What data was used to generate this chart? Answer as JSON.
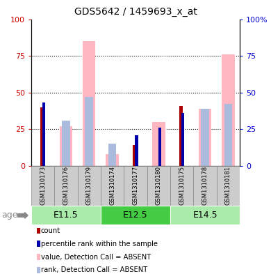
{
  "title": "GDS5642 / 1459693_x_at",
  "samples": [
    "GSM1310173",
    "GSM1310176",
    "GSM1310179",
    "GSM1310174",
    "GSM1310177",
    "GSM1310180",
    "GSM1310175",
    "GSM1310178",
    "GSM1310181"
  ],
  "age_groups": [
    {
      "label": "E11.5",
      "start": 0,
      "end": 3,
      "color": "#AAEAAA"
    },
    {
      "label": "E12.5",
      "start": 3,
      "end": 6,
      "color": "#44CC44"
    },
    {
      "label": "E14.5",
      "start": 6,
      "end": 9,
      "color": "#AAEAAA"
    }
  ],
  "count_values": [
    40,
    0,
    0,
    0,
    14,
    0,
    41,
    0,
    0
  ],
  "percentile_values": [
    43,
    0,
    0,
    0,
    21,
    26,
    36,
    0,
    0
  ],
  "value_absent": [
    0,
    27,
    85,
    8,
    0,
    30,
    0,
    39,
    76
  ],
  "rank_absent": [
    0,
    31,
    47,
    15,
    0,
    0,
    0,
    39,
    42
  ],
  "ylim": [
    0,
    100
  ],
  "yticks": [
    0,
    25,
    50,
    75,
    100
  ],
  "count_color": "#AA0000",
  "percentile_color": "#0000AA",
  "value_absent_color": "#FFB6C1",
  "rank_absent_color": "#AABBDD",
  "grid_color": "black",
  "left_axis_color": "#CC0000",
  "right_axis_color": "#0000CC",
  "age_label": "age",
  "label_bg_color": "#CCCCCC",
  "legend_items": [
    {
      "label": "count",
      "color": "#AA0000"
    },
    {
      "label": "percentile rank within the sample",
      "color": "#0000AA"
    },
    {
      "label": "value, Detection Call = ABSENT",
      "color": "#FFB6C1"
    },
    {
      "label": "rank, Detection Call = ABSENT",
      "color": "#AABBDD"
    }
  ]
}
